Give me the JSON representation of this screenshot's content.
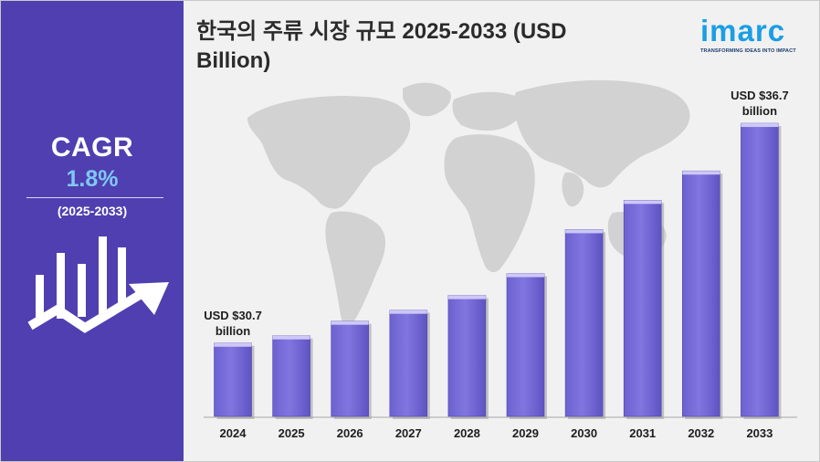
{
  "title": "한국의 주류 시장 규모 2025-2033 (USD Billion)",
  "sidebar": {
    "cagr_label": "CAGR",
    "cagr_value": "1.8%",
    "period": "(2025-2033)"
  },
  "logo": {
    "word": "imarc",
    "tagline": "TRANSFORMING IDEAS INTO IMPACT"
  },
  "colors": {
    "sidebar_bg": "#4f3fb0",
    "bar_fill": "#7d72dc",
    "bar_top": "#cdc8f6",
    "accent_blue": "#1b9ee4"
  },
  "chart_data": {
    "type": "bar",
    "title": "한국의 주류 시장 규모 2025-2033 (USD Billion)",
    "categories": [
      "2024",
      "2025",
      "2026",
      "2027",
      "2028",
      "2029",
      "2030",
      "2031",
      "2032",
      "2033"
    ],
    "values": [
      30.7,
      30.9,
      31.3,
      31.6,
      32.0,
      32.6,
      33.8,
      34.6,
      35.4,
      36.7
    ],
    "ylim": [
      28.7,
      37.3
    ],
    "annotations": [
      {
        "category": "2024",
        "text": "USD $30.7 billion"
      },
      {
        "category": "2033",
        "text": "USD $36.7 billion"
      }
    ],
    "xlabel": "",
    "ylabel": "",
    "grid": false
  }
}
